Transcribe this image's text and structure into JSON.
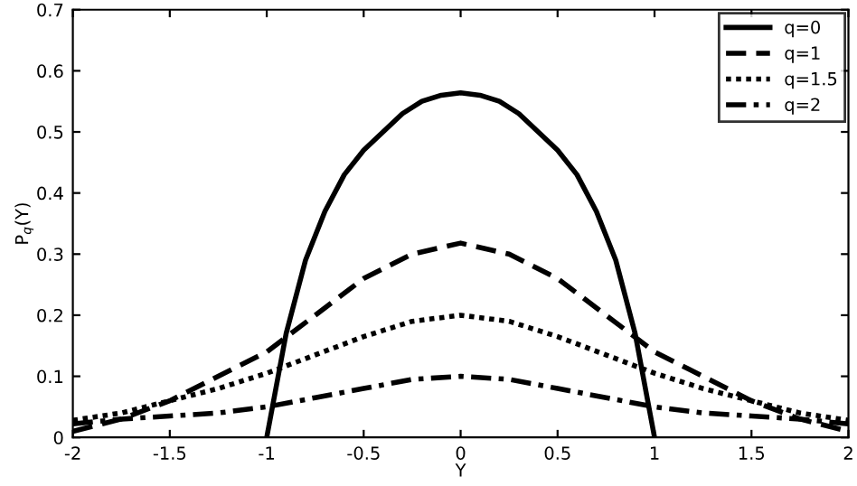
{
  "chart_data": {
    "type": "line",
    "xlabel": "Y",
    "ylabel": "P$_{q}$(Y)",
    "xlim": [
      -2,
      2
    ],
    "ylim": [
      0,
      0.7
    ],
    "xticks": [
      {
        "value": -2,
        "label": "-2"
      },
      {
        "value": -1.5,
        "label": "-1.5"
      },
      {
        "value": -1,
        "label": "-1"
      },
      {
        "value": -0.5,
        "label": "-0.5"
      },
      0,
      0.5,
      1,
      1.5,
      2
    ],
    "yticks": [
      0,
      0.1,
      0.2,
      0.3,
      0.4,
      0.5,
      0.6,
      0.7
    ],
    "grid": false,
    "legend": "top right",
    "series": [
      {
        "name": "q=0",
        "color": "#000000",
        "line_style": "solid",
        "x": [
          -1,
          -0.9,
          -0.8,
          -0.7,
          -0.6,
          -0.5,
          -0.4,
          -0.3,
          -0.2,
          -0.1,
          0,
          0.1,
          0.2,
          0.3,
          0.4,
          0.5,
          0.6,
          0.7,
          0.8,
          0.9,
          1
        ],
        "values": [
          0,
          0.17,
          0.29,
          0.37,
          0.43,
          0.47,
          0.5,
          0.53,
          0.55,
          0.56,
          0.564,
          0.56,
          0.55,
          0.53,
          0.5,
          0.47,
          0.43,
          0.37,
          0.29,
          0.17,
          0
        ]
      },
      {
        "name": "q=1",
        "color": "#000000",
        "line_style": "dashed",
        "x": [
          -2,
          -1.75,
          -1.5,
          -1.25,
          -1,
          -0.75,
          -0.5,
          -0.25,
          0,
          0.25,
          0.5,
          0.75,
          1,
          1.25,
          1.5,
          1.75,
          2
        ],
        "values": [
          0.01,
          0.03,
          0.06,
          0.1,
          0.14,
          0.2,
          0.26,
          0.3,
          0.318,
          0.3,
          0.26,
          0.2,
          0.14,
          0.1,
          0.06,
          0.03,
          0.01
        ]
      },
      {
        "name": "q=1.5",
        "color": "#000000",
        "line_style": "dotted",
        "x": [
          -2,
          -1.75,
          -1.5,
          -1.25,
          -1,
          -0.75,
          -0.5,
          -0.25,
          0,
          0.25,
          0.5,
          0.75,
          1,
          1.25,
          1.5,
          1.75,
          2
        ],
        "values": [
          0.028,
          0.04,
          0.06,
          0.08,
          0.105,
          0.135,
          0.165,
          0.19,
          0.2,
          0.19,
          0.165,
          0.135,
          0.105,
          0.08,
          0.06,
          0.04,
          0.028
        ]
      },
      {
        "name": "q=2",
        "color": "#000000",
        "line_style": "dashdot",
        "x": [
          -2,
          -1.75,
          -1.5,
          -1.25,
          -1,
          -0.75,
          -0.5,
          -0.25,
          0,
          0.25,
          0.5,
          0.75,
          1,
          1.25,
          1.5,
          1.75,
          2
        ],
        "values": [
          0.022,
          0.03,
          0.035,
          0.04,
          0.05,
          0.065,
          0.08,
          0.095,
          0.1,
          0.095,
          0.08,
          0.065,
          0.05,
          0.04,
          0.035,
          0.03,
          0.022
        ]
      }
    ]
  }
}
